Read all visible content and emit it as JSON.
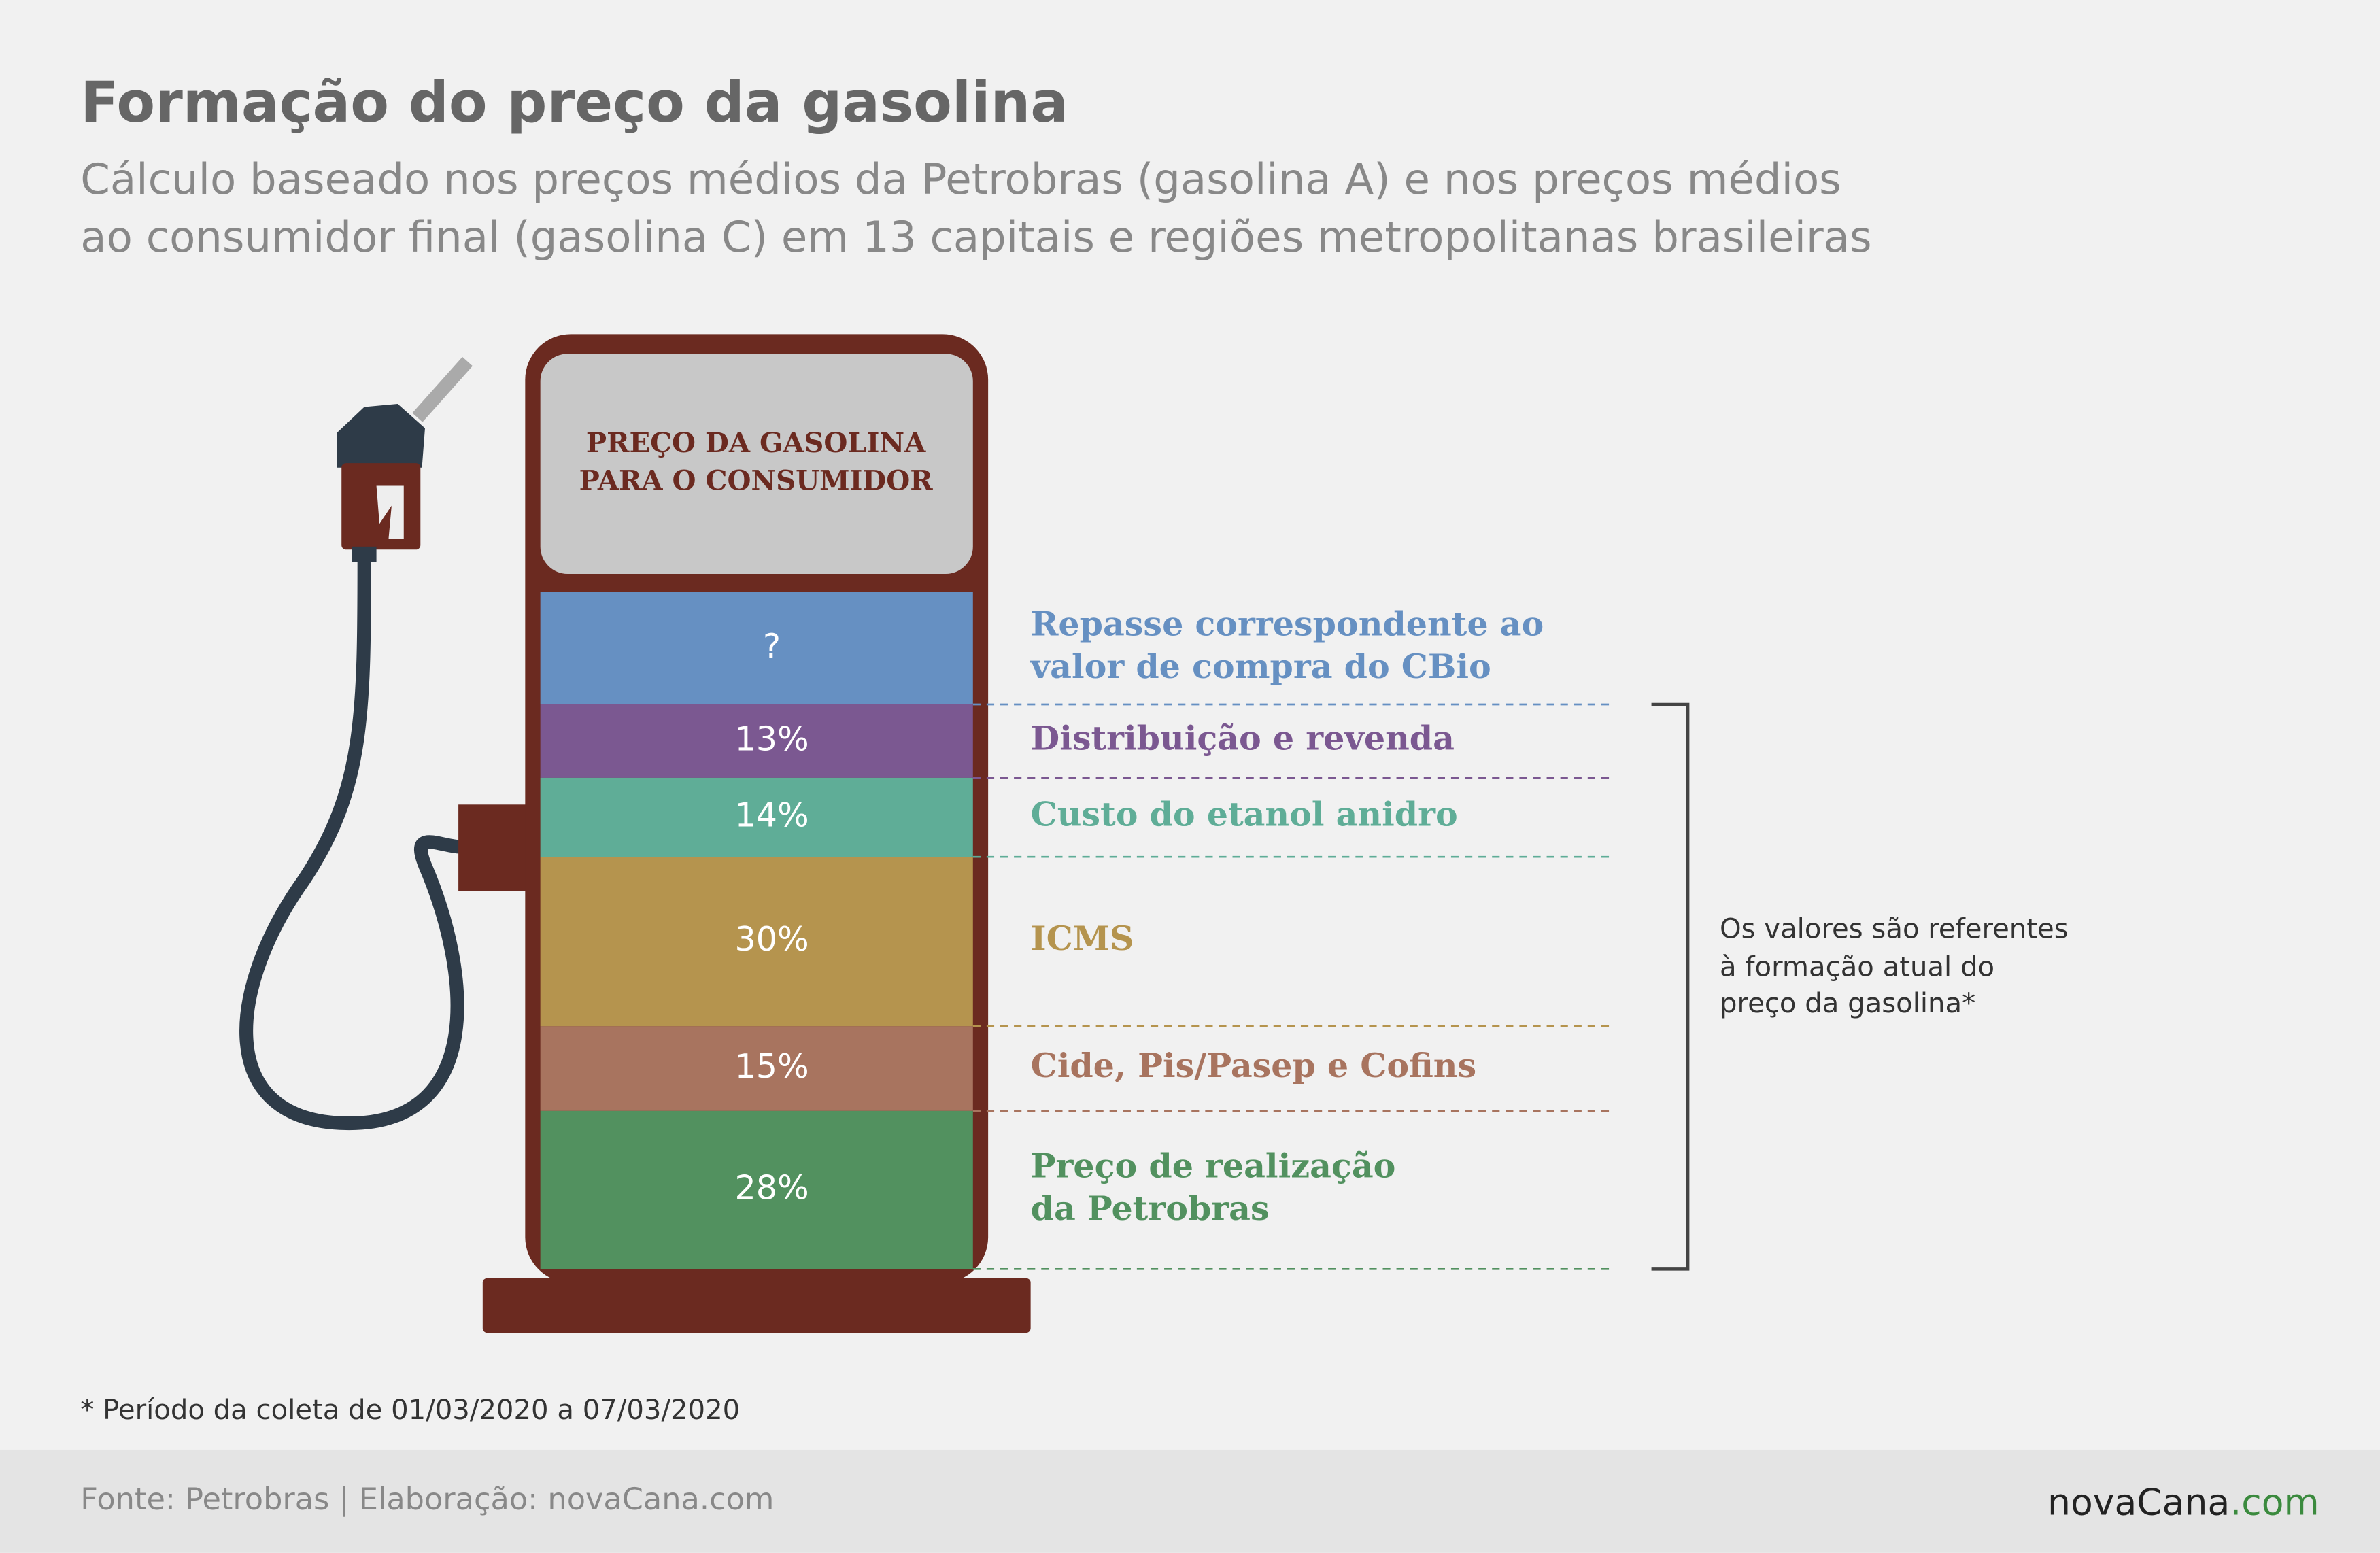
{
  "chart_data": {
    "type": "bar",
    "title": "Formação do preço da gasolina",
    "subtitle": [
      "Cálculo baseado nos preços médios da Petrobras (gasolina A) e nos preços médios",
      "ao consumidor final (gasolina C) em 13 capitais e regiões metropolitanas brasileiras"
    ],
    "header": [
      "PREÇO DA GASOLINA",
      "PARA O CONSUMIDOR"
    ],
    "categories": [
      [
        "Repasse correspondente ao",
        "valor de compra do CBio"
      ],
      [
        "Distribuição e revenda"
      ],
      [
        "Custo do etanol anidro"
      ],
      [
        "ICMS"
      ],
      [
        "Cide, Pis/Pasep e Cofins"
      ],
      [
        "Preço de realização",
        "da Petrobras"
      ]
    ],
    "values": [
      null,
      13,
      14,
      30,
      15,
      28
    ],
    "value_labels": [
      "?",
      "13%",
      "14%",
      "30%",
      "15%",
      "28%"
    ],
    "colors": [
      "#6690c2",
      "#7b5891",
      "#5fad97",
      "#b5944e",
      "#a8745f",
      "#52915f"
    ],
    "note": [
      "Os valores são referentes",
      "à formação atual do",
      "preço da gasolina*"
    ],
    "footnote": "* Período da coleta de 01/03/2020 a 07/03/2020",
    "source": "Fonte: Petrobras | Elaboração: novaCana.com",
    "brand": [
      "novaCana",
      ".com"
    ]
  }
}
